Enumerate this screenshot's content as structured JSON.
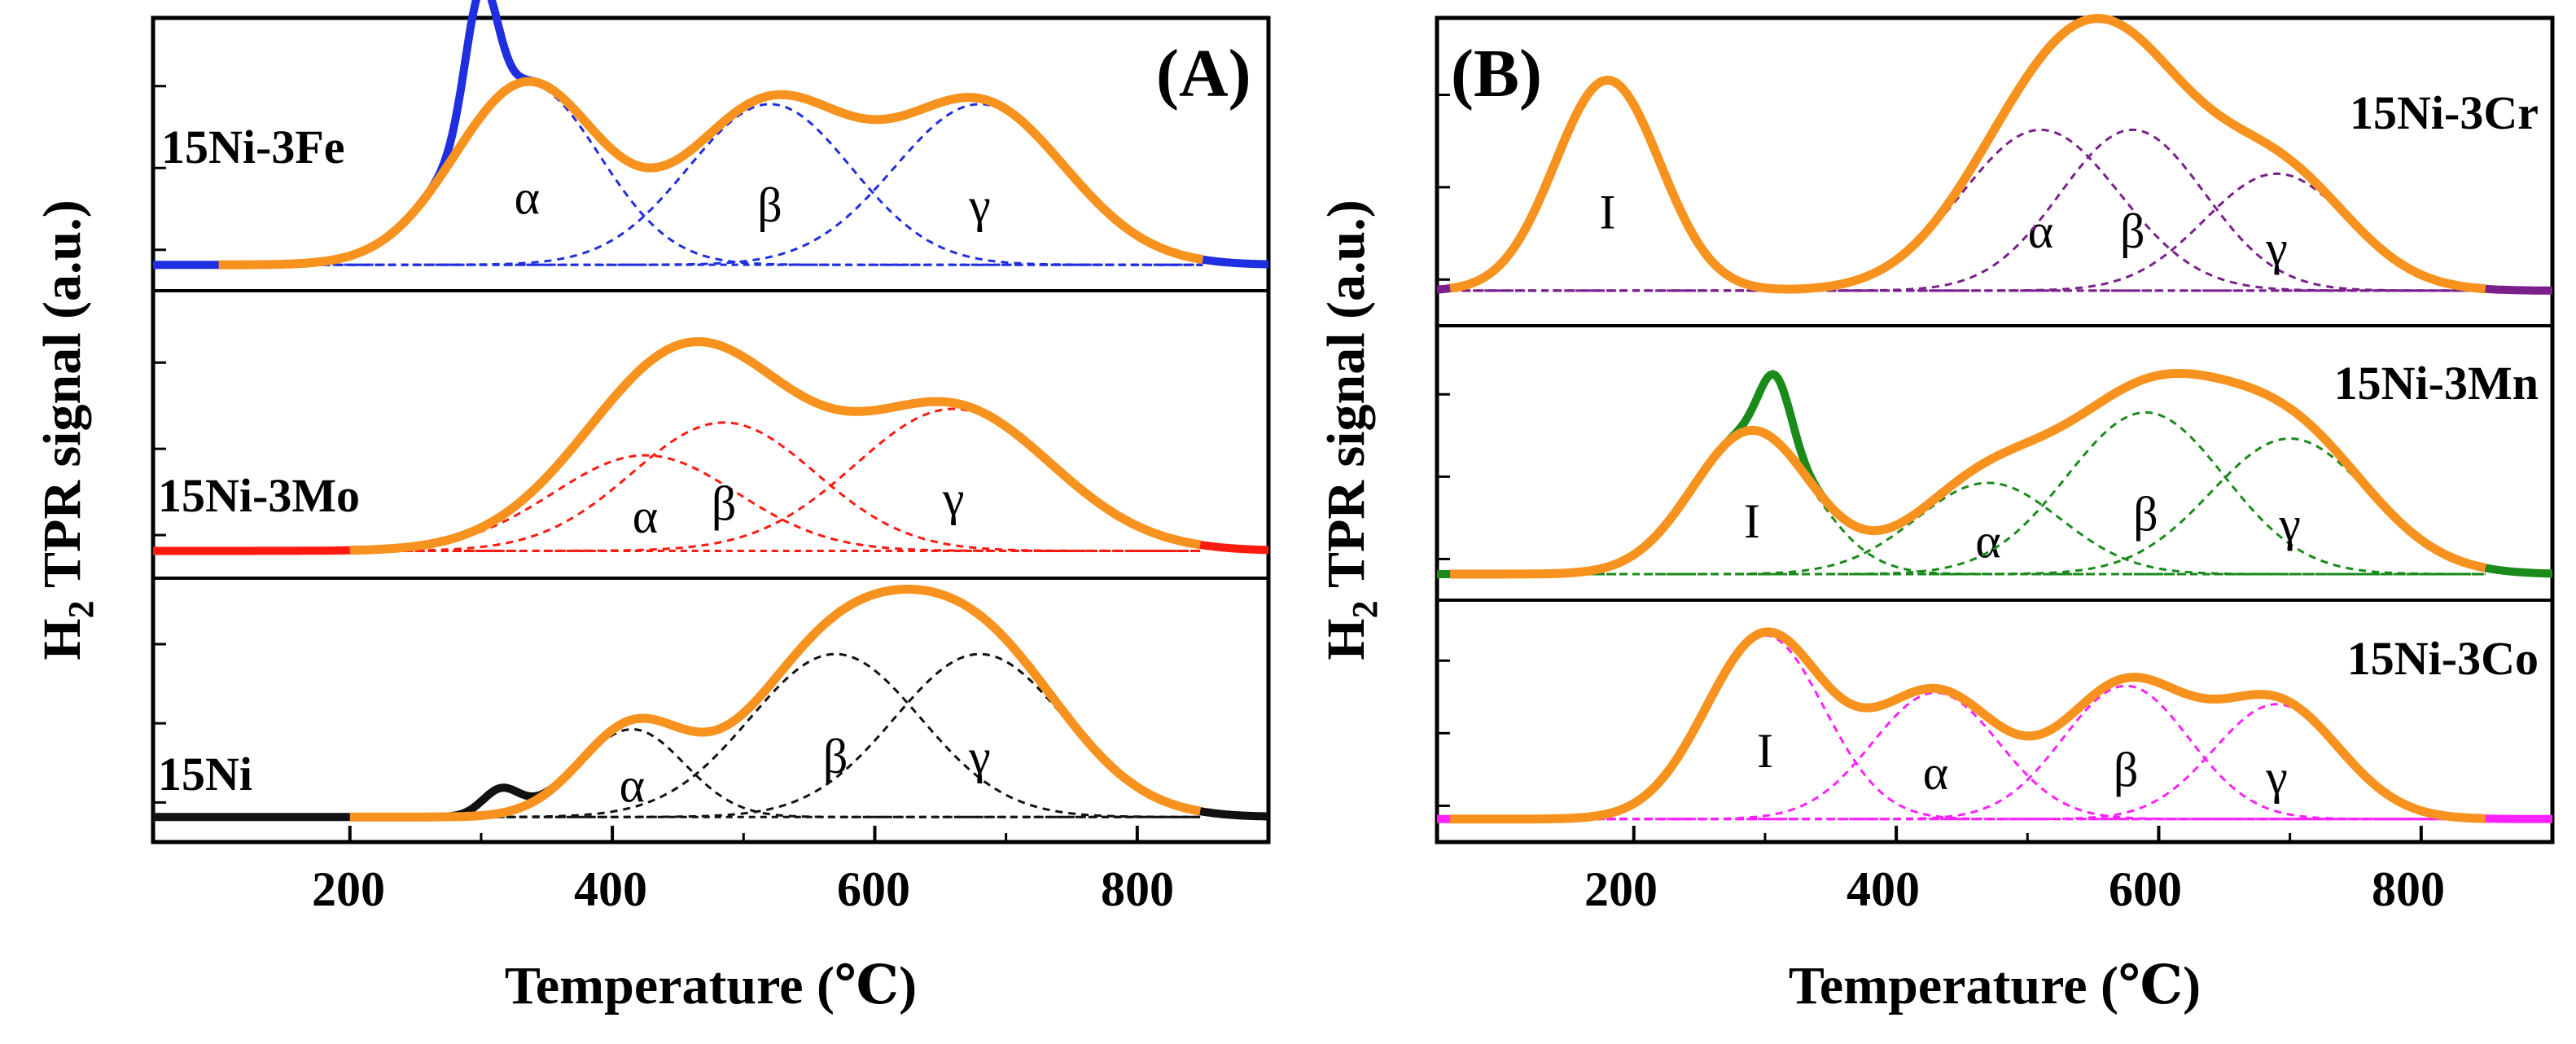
{
  "chart_data": [
    {
      "type": "line",
      "panel_label": "(A)",
      "xlabel": "Temperature (℃)",
      "ylabel_main": "H",
      "ylabel_sub": "2",
      "ylabel_rest": " TPR signal (a.u.)",
      "xlim": [
        50,
        900
      ],
      "xticks": [
        200,
        400,
        600,
        800
      ],
      "xtick_labels": [
        "200",
        "400",
        "600",
        "800"
      ],
      "subplots": [
        {
          "sample": "15Ni-3Fe",
          "color": "#1f2fe0",
          "fit_color": "#f7921e",
          "baseline": 0.1,
          "peaks": [
            {
              "label": "α",
              "center": 335,
              "height": 0.7,
              "width": 55
            },
            {
              "label": "β",
              "center": 520,
              "height": 0.62,
              "width": 62
            },
            {
              "label": "γ",
              "center": 680,
              "height": 0.62,
              "width": 65
            }
          ],
          "extra_peaks": [
            {
              "center": 300,
              "height": 0.5,
              "width": 12
            }
          ],
          "fit_range": [
            100,
            850
          ]
        },
        {
          "sample": "15Ni-3Mo",
          "color": "#ff1a10",
          "fit_color": "#f7921e",
          "baseline": 0.1,
          "peaks": [
            {
              "label": "α",
              "center": 425,
              "height": 0.35,
              "width": 70
            },
            {
              "label": "β",
              "center": 485,
              "height": 0.47,
              "width": 70
            },
            {
              "label": "γ",
              "center": 660,
              "height": 0.52,
              "width": 75
            }
          ],
          "extra_peaks": [],
          "fit_range": [
            200,
            850
          ]
        },
        {
          "sample": "15Ni",
          "color": "#111111",
          "fit_color": "#f7921e",
          "baseline": 0.1,
          "peaks": [
            {
              "label": "α",
              "center": 415,
              "height": 0.35,
              "width": 40
            },
            {
              "label": "β",
              "center": 570,
              "height": 0.65,
              "width": 65
            },
            {
              "label": "γ",
              "center": 680,
              "height": 0.65,
              "width": 65
            }
          ],
          "extra_peaks": [
            {
              "center": 315,
              "height": 0.1,
              "width": 14
            }
          ],
          "fit_range": [
            200,
            850
          ]
        }
      ],
      "peak_labels": [
        "α",
        "β",
        "γ"
      ]
    },
    {
      "type": "line",
      "panel_label": "(B)",
      "xlabel": "Temperature (℃)",
      "ylabel_main": "H",
      "ylabel_sub": "2",
      "ylabel_rest": " TPR signal (a.u.)",
      "xlim": [
        50,
        900
      ],
      "xticks": [
        200,
        400,
        600,
        800
      ],
      "xtick_labels": [
        "200",
        "400",
        "600",
        "800"
      ],
      "subplots": [
        {
          "sample": "15Ni-3Cr",
          "color": "#7a1f8c",
          "fit_color": "#f7921e",
          "baseline": 0.12,
          "peaks": [
            {
              "label": "I",
              "center": 180,
              "height": 0.72,
              "width": 40
            },
            {
              "label": "α",
              "center": 510,
              "height": 0.55,
              "width": 60
            },
            {
              "label": "β",
              "center": 580,
              "height": 0.55,
              "width": 55
            },
            {
              "label": "γ",
              "center": 690,
              "height": 0.4,
              "width": 55
            }
          ],
          "extra_peaks": [],
          "fit_range": [
            60,
            850
          ]
        },
        {
          "sample": "15Ni-3Mn",
          "color": "#1a8a1a",
          "fit_color": "#f7921e",
          "baseline": 0.1,
          "peaks": [
            {
              "label": "I",
              "center": 290,
              "height": 0.55,
              "width": 45
            },
            {
              "label": "α",
              "center": 470,
              "height": 0.35,
              "width": 55
            },
            {
              "label": "β",
              "center": 590,
              "height": 0.62,
              "width": 60
            },
            {
              "label": "γ",
              "center": 700,
              "height": 0.52,
              "width": 60
            }
          ],
          "extra_peaks": [
            {
              "center": 308,
              "height": 0.25,
              "width": 12
            }
          ],
          "fit_range": [
            60,
            850
          ]
        },
        {
          "sample": "15Ni-3Co",
          "color": "#ff20ff",
          "fit_color": "#f7921e",
          "baseline": 0.1,
          "peaks": [
            {
              "label": "I",
              "center": 300,
              "height": 0.8,
              "width": 45
            },
            {
              "label": "α",
              "center": 430,
              "height": 0.55,
              "width": 48
            },
            {
              "label": "β",
              "center": 575,
              "height": 0.58,
              "width": 48
            },
            {
              "label": "γ",
              "center": 690,
              "height": 0.5,
              "width": 48
            }
          ],
          "extra_peaks": [],
          "fit_range": [
            60,
            850
          ]
        }
      ],
      "peak_labels": [
        "I",
        "α",
        "β",
        "γ"
      ]
    }
  ]
}
